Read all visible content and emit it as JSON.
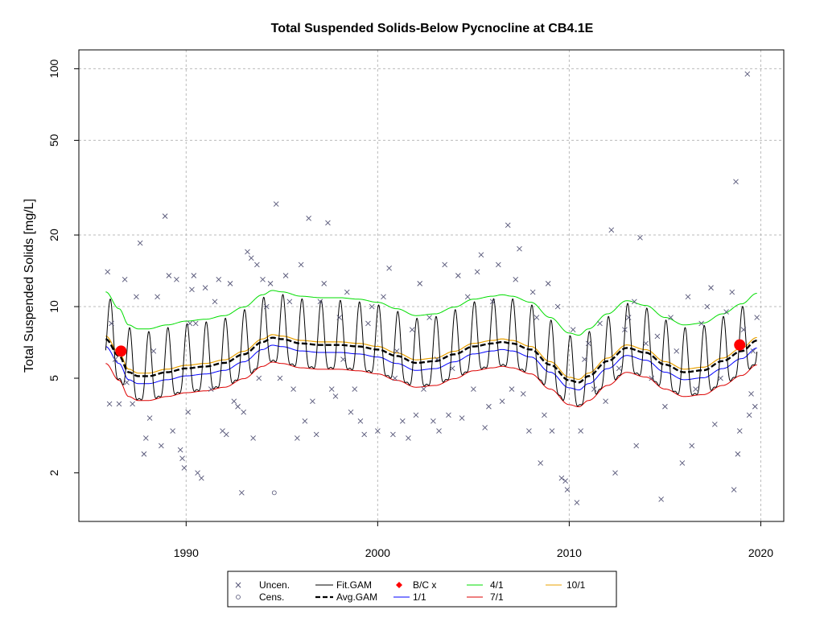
{
  "chart_data": {
    "type": "scatter",
    "title": "Total Suspended Solids-Below Pycnocline at CB4.1E",
    "xlabel": "",
    "ylabel": "Total Suspended Solids [mg/L]",
    "xlim": [
      1984.4,
      2021.2
    ],
    "ylim": [
      1.25,
      120
    ],
    "y_scale": "log",
    "grid": true,
    "legend_position": "bottom",
    "x_ticks": [
      "1990",
      "2000",
      "2010",
      "2020"
    ],
    "y_ticks": [
      "2",
      "5",
      "10",
      "20",
      "50",
      "100"
    ],
    "legend": {
      "uncen": "Uncen.",
      "cens": "Cens.",
      "fit": "Fit.GAM",
      "avg": "Avg.GAM",
      "bc": "B/C x",
      "d1": "1/1",
      "d4": "4/1",
      "d7": "7/1",
      "d10": "10/1"
    },
    "colors": {
      "uncen": "#555577",
      "fit": "#000000",
      "avg": "#000000",
      "bc": "#ff0000",
      "d1": "#0000ff",
      "d4": "#00dd00",
      "d7": "#dd0000",
      "d10": "#e8a000",
      "grid": "#bbbbbb"
    },
    "baseline_curve": {
      "x": [
        1985.8,
        1986.5,
        1987,
        1987.5,
        1988,
        1989,
        1990,
        1991,
        1992,
        1993,
        1994,
        1994.5,
        1995,
        1996,
        1997,
        1998,
        1999,
        2000,
        2001,
        2002,
        2003,
        2004,
        2005,
        2006,
        2006.5,
        2007,
        2008,
        2009,
        2010,
        2010.5,
        2011,
        2012,
        2013,
        2014,
        2015,
        2016,
        2017,
        2018,
        2019,
        2019.8
      ],
      "y": [
        7.3,
        6.2,
        5.3,
        5.1,
        5.1,
        5.3,
        5.5,
        5.6,
        5.8,
        6.3,
        7.1,
        7.4,
        7.3,
        7.0,
        6.9,
        6.9,
        6.8,
        6.6,
        6.2,
        5.8,
        5.9,
        6.3,
        6.8,
        7.0,
        7.1,
        7.0,
        6.6,
        5.7,
        4.9,
        4.8,
        5.1,
        5.9,
        6.7,
        6.4,
        5.7,
        5.3,
        5.4,
        5.9,
        6.5,
        7.2
      ]
    },
    "ratio_1_1": 0.93,
    "ratio_4_1": 1.58,
    "ratio_7_1": 0.79,
    "ratio_10_1": 1.03,
    "seasonal_amplitude": 0.27,
    "bc_points": [
      {
        "x": 1986.6,
        "y": 6.5
      },
      {
        "x": 2018.9,
        "y": 6.9
      }
    ],
    "censored_points": [
      {
        "x": 1994.6,
        "y": 1.65
      }
    ],
    "uncensored_points": [
      {
        "x": 1985.9,
        "y": 14.0
      },
      {
        "x": 1986.1,
        "y": 8.5
      },
      {
        "x": 1986.3,
        "y": 6.0
      },
      {
        "x": 1986.0,
        "y": 3.9
      },
      {
        "x": 1986.5,
        "y": 3.9
      },
      {
        "x": 1986.8,
        "y": 13.0
      },
      {
        "x": 1986.9,
        "y": 4.8
      },
      {
        "x": 1987.2,
        "y": 3.9
      },
      {
        "x": 1987.4,
        "y": 11.0
      },
      {
        "x": 1987.6,
        "y": 18.5
      },
      {
        "x": 1987.8,
        "y": 2.4
      },
      {
        "x": 1987.9,
        "y": 2.8
      },
      {
        "x": 1988.1,
        "y": 3.4
      },
      {
        "x": 1988.3,
        "y": 6.5
      },
      {
        "x": 1988.5,
        "y": 11.0
      },
      {
        "x": 1988.7,
        "y": 2.6
      },
      {
        "x": 1988.9,
        "y": 24.0
      },
      {
        "x": 1989.1,
        "y": 13.5
      },
      {
        "x": 1989.3,
        "y": 3.0
      },
      {
        "x": 1989.5,
        "y": 13.0
      },
      {
        "x": 1989.7,
        "y": 2.5
      },
      {
        "x": 1989.8,
        "y": 2.3
      },
      {
        "x": 1989.9,
        "y": 2.1
      },
      {
        "x": 1990.1,
        "y": 3.6
      },
      {
        "x": 1990.2,
        "y": 8.5
      },
      {
        "x": 1990.3,
        "y": 11.8
      },
      {
        "x": 1990.4,
        "y": 13.5
      },
      {
        "x": 1990.6,
        "y": 2.0
      },
      {
        "x": 1990.8,
        "y": 1.9
      },
      {
        "x": 1991.0,
        "y": 12.0
      },
      {
        "x": 1991.3,
        "y": 4.5
      },
      {
        "x": 1991.5,
        "y": 10.5
      },
      {
        "x": 1991.7,
        "y": 13.0
      },
      {
        "x": 1991.9,
        "y": 3.0
      },
      {
        "x": 1992.1,
        "y": 2.9
      },
      {
        "x": 1992.3,
        "y": 12.5
      },
      {
        "x": 1992.5,
        "y": 4.0
      },
      {
        "x": 1992.7,
        "y": 3.8
      },
      {
        "x": 1992.9,
        "y": 1.65
      },
      {
        "x": 1993.0,
        "y": 3.6
      },
      {
        "x": 1993.2,
        "y": 17.0
      },
      {
        "x": 1993.4,
        "y": 16.0
      },
      {
        "x": 1993.5,
        "y": 2.8
      },
      {
        "x": 1993.7,
        "y": 15.0
      },
      {
        "x": 1993.8,
        "y": 5.0
      },
      {
        "x": 1994.0,
        "y": 13.0
      },
      {
        "x": 1994.2,
        "y": 10.0
      },
      {
        "x": 1994.4,
        "y": 12.5
      },
      {
        "x": 1994.7,
        "y": 27.0
      },
      {
        "x": 1994.9,
        "y": 5.0
      },
      {
        "x": 1995.2,
        "y": 13.5
      },
      {
        "x": 1995.4,
        "y": 10.5
      },
      {
        "x": 1995.6,
        "y": 4.5
      },
      {
        "x": 1995.8,
        "y": 2.8
      },
      {
        "x": 1996.0,
        "y": 15.0
      },
      {
        "x": 1996.2,
        "y": 3.3
      },
      {
        "x": 1996.4,
        "y": 23.5
      },
      {
        "x": 1996.6,
        "y": 4.0
      },
      {
        "x": 1996.8,
        "y": 2.9
      },
      {
        "x": 1997.0,
        "y": 10.5
      },
      {
        "x": 1997.2,
        "y": 12.5
      },
      {
        "x": 1997.4,
        "y": 22.5
      },
      {
        "x": 1997.6,
        "y": 4.5
      },
      {
        "x": 1997.8,
        "y": 4.2
      },
      {
        "x": 1998.0,
        "y": 9.0
      },
      {
        "x": 1998.2,
        "y": 6.0
      },
      {
        "x": 1998.4,
        "y": 11.5
      },
      {
        "x": 1998.6,
        "y": 3.6
      },
      {
        "x": 1998.8,
        "y": 4.5
      },
      {
        "x": 1999.1,
        "y": 3.3
      },
      {
        "x": 1999.3,
        "y": 2.9
      },
      {
        "x": 1999.5,
        "y": 8.5
      },
      {
        "x": 1999.7,
        "y": 10.0
      },
      {
        "x": 2000.0,
        "y": 3.0
      },
      {
        "x": 2000.3,
        "y": 11.0
      },
      {
        "x": 2000.6,
        "y": 14.5
      },
      {
        "x": 2000.8,
        "y": 2.9
      },
      {
        "x": 2001.0,
        "y": 6.5
      },
      {
        "x": 2001.3,
        "y": 3.3
      },
      {
        "x": 2001.6,
        "y": 2.8
      },
      {
        "x": 2001.8,
        "y": 8.0
      },
      {
        "x": 2002.0,
        "y": 3.5
      },
      {
        "x": 2002.2,
        "y": 12.5
      },
      {
        "x": 2002.4,
        "y": 4.5
      },
      {
        "x": 2002.7,
        "y": 9.0
      },
      {
        "x": 2002.9,
        "y": 3.3
      },
      {
        "x": 2003.2,
        "y": 3.0
      },
      {
        "x": 2003.5,
        "y": 15.0
      },
      {
        "x": 2003.7,
        "y": 3.5
      },
      {
        "x": 2003.9,
        "y": 5.5
      },
      {
        "x": 2004.2,
        "y": 13.5
      },
      {
        "x": 2004.4,
        "y": 3.4
      },
      {
        "x": 2004.7,
        "y": 11.0
      },
      {
        "x": 2005.0,
        "y": 4.5
      },
      {
        "x": 2005.2,
        "y": 14.0
      },
      {
        "x": 2005.4,
        "y": 16.5
      },
      {
        "x": 2005.6,
        "y": 3.1
      },
      {
        "x": 2005.8,
        "y": 3.8
      },
      {
        "x": 2006.0,
        "y": 10.5
      },
      {
        "x": 2006.3,
        "y": 15.0
      },
      {
        "x": 2006.5,
        "y": 4.0
      },
      {
        "x": 2006.8,
        "y": 22.0
      },
      {
        "x": 2007.0,
        "y": 4.5
      },
      {
        "x": 2007.2,
        "y": 13.0
      },
      {
        "x": 2007.4,
        "y": 17.5
      },
      {
        "x": 2007.6,
        "y": 4.3
      },
      {
        "x": 2007.9,
        "y": 3.0
      },
      {
        "x": 2008.1,
        "y": 11.5
      },
      {
        "x": 2008.3,
        "y": 9.0
      },
      {
        "x": 2008.5,
        "y": 2.2
      },
      {
        "x": 2008.7,
        "y": 3.5
      },
      {
        "x": 2008.9,
        "y": 12.5
      },
      {
        "x": 2009.1,
        "y": 3.0
      },
      {
        "x": 2009.4,
        "y": 10.0
      },
      {
        "x": 2009.6,
        "y": 1.9
      },
      {
        "x": 2009.8,
        "y": 1.85
      },
      {
        "x": 2009.9,
        "y": 1.7
      },
      {
        "x": 2010.2,
        "y": 8.0
      },
      {
        "x": 2010.4,
        "y": 1.5
      },
      {
        "x": 2010.6,
        "y": 3.0
      },
      {
        "x": 2010.8,
        "y": 6.0
      },
      {
        "x": 2011.0,
        "y": 7.0
      },
      {
        "x": 2011.3,
        "y": 4.5
      },
      {
        "x": 2011.6,
        "y": 8.5
      },
      {
        "x": 2011.9,
        "y": 4.0
      },
      {
        "x": 2012.2,
        "y": 21.0
      },
      {
        "x": 2012.4,
        "y": 2.0
      },
      {
        "x": 2012.6,
        "y": 5.5
      },
      {
        "x": 2012.9,
        "y": 8.0
      },
      {
        "x": 2013.1,
        "y": 9.0
      },
      {
        "x": 2013.4,
        "y": 10.5
      },
      {
        "x": 2013.5,
        "y": 2.6
      },
      {
        "x": 2013.7,
        "y": 19.5
      },
      {
        "x": 2014.0,
        "y": 7.0
      },
      {
        "x": 2014.3,
        "y": 5.0
      },
      {
        "x": 2014.6,
        "y": 7.5
      },
      {
        "x": 2014.8,
        "y": 1.55
      },
      {
        "x": 2015.0,
        "y": 3.8
      },
      {
        "x": 2015.3,
        "y": 9.0
      },
      {
        "x": 2015.6,
        "y": 6.5
      },
      {
        "x": 2015.9,
        "y": 2.2
      },
      {
        "x": 2016.2,
        "y": 11.0
      },
      {
        "x": 2016.4,
        "y": 2.6
      },
      {
        "x": 2016.6,
        "y": 4.5
      },
      {
        "x": 2016.9,
        "y": 8.5
      },
      {
        "x": 2017.2,
        "y": 10.0
      },
      {
        "x": 2017.4,
        "y": 12.0
      },
      {
        "x": 2017.6,
        "y": 3.2
      },
      {
        "x": 2017.9,
        "y": 5.0
      },
      {
        "x": 2018.2,
        "y": 9.5
      },
      {
        "x": 2018.5,
        "y": 11.5
      },
      {
        "x": 2018.7,
        "y": 33.5
      },
      {
        "x": 2018.8,
        "y": 2.4
      },
      {
        "x": 2018.9,
        "y": 3.0
      },
      {
        "x": 2018.6,
        "y": 1.7
      },
      {
        "x": 2019.1,
        "y": 8.0
      },
      {
        "x": 2019.3,
        "y": 95.0
      },
      {
        "x": 2019.4,
        "y": 3.5
      },
      {
        "x": 2019.5,
        "y": 4.3
      },
      {
        "x": 2019.7,
        "y": 3.8
      },
      {
        "x": 2019.8,
        "y": 9.0
      },
      {
        "x": 2019.6,
        "y": 6.5
      },
      {
        "x": 2000.9,
        "y": 5.0
      },
      {
        "x": 1990.5,
        "y": 8.5
      },
      {
        "x": 2003.1,
        "y": 6.0
      }
    ]
  }
}
